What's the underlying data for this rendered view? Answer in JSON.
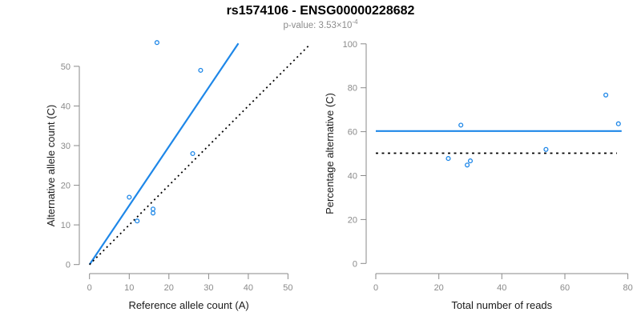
{
  "title": "rs1574106 - ENSG00000228682",
  "subtitle": {
    "text": "p-value: 3.53×10",
    "exponent": "-4"
  },
  "colors": {
    "accent_blue": "#1E87E8",
    "axis_gray": "#8A8A8A",
    "axis_title_black": "#1A1A1A",
    "title_black": "#000000",
    "subtitle_gray": "#8C8C8C",
    "dotted_line_black": "#000000",
    "background": "#FFFFFF"
  },
  "chart_data": [
    {
      "type": "scatter",
      "panel": "left",
      "xlabel": "Reference allele count (A)",
      "ylabel": "Alternative allele count (C)",
      "xlim": [
        0,
        56
      ],
      "ylim": [
        0,
        56
      ],
      "xticks": [
        0,
        10,
        20,
        30,
        40,
        50
      ],
      "yticks": [
        0,
        10,
        20,
        30,
        40,
        50
      ],
      "grid": false,
      "legend": false,
      "points": [
        [
          10,
          17
        ],
        [
          12,
          11
        ],
        [
          16,
          13
        ],
        [
          16,
          14
        ],
        [
          17,
          56
        ],
        [
          26,
          28
        ],
        [
          28,
          49
        ]
      ],
      "lines": [
        {
          "name": "fitted-allelic-ratio-line",
          "style": "solid",
          "color_key": "accent_blue",
          "x1": 0,
          "y1": 0,
          "x2": 37.5,
          "y2": 55.8
        },
        {
          "name": "identity-line",
          "style": "dotted",
          "color_key": "dotted_line_black",
          "x1": 0,
          "y1": 0,
          "x2": 55.6,
          "y2": 55.6
        }
      ]
    },
    {
      "type": "scatter",
      "panel": "right",
      "xlabel": "Total number of reads",
      "ylabel": "Percentage alternative (C)",
      "xlim": [
        0,
        80
      ],
      "ylim": [
        0,
        100
      ],
      "xticks": [
        0,
        20,
        40,
        60,
        80
      ],
      "yticks": [
        0,
        20,
        40,
        60,
        80,
        100
      ],
      "grid": false,
      "legend": false,
      "points": [
        [
          23,
          47.8
        ],
        [
          27,
          63
        ],
        [
          29,
          44.8
        ],
        [
          30,
          46.7
        ],
        [
          54,
          51.9
        ],
        [
          73,
          76.7
        ],
        [
          77,
          63.6
        ]
      ],
      "lines": [
        {
          "name": "mean-percentage-line",
          "style": "solid",
          "color_key": "accent_blue",
          "x1": 0,
          "y1": 60.3,
          "x2": 78,
          "y2": 60.3
        },
        {
          "name": "fifty-percent-line",
          "style": "dotted",
          "color_key": "dotted_line_black",
          "x1": 0,
          "y1": 50.2,
          "x2": 76.5,
          "y2": 50.2
        }
      ]
    }
  ]
}
